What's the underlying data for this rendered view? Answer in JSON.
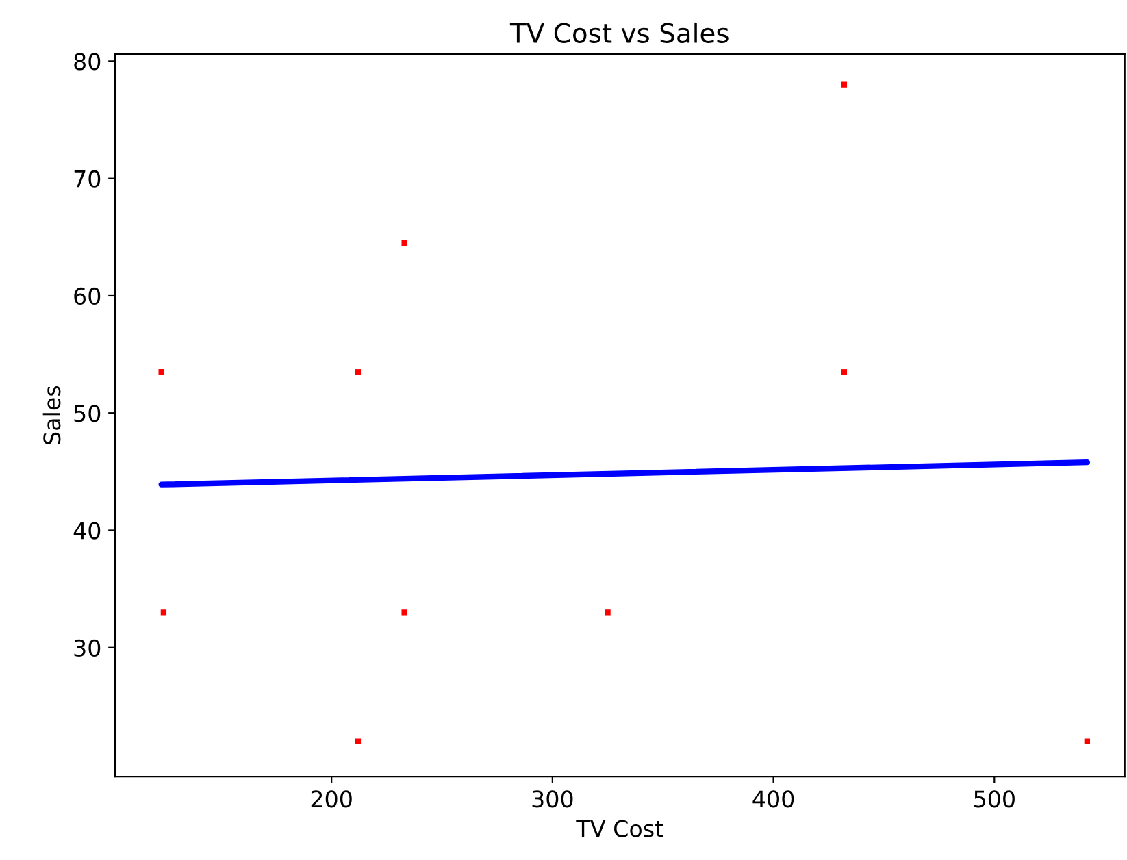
{
  "chart_data": {
    "type": "scatter",
    "title": "TV Cost vs Sales",
    "xlabel": "TV Cost",
    "ylabel": "Sales",
    "xlim": [
      102,
      559
    ],
    "xticks": [
      200,
      300,
      400,
      500
    ],
    "ylim": [
      19,
      80.6
    ],
    "yticks": [
      30,
      40,
      50,
      60,
      70,
      80
    ],
    "grid": false,
    "series": [
      {
        "color": "#ff0000",
        "marker": "square",
        "x": [
          123,
          124,
          212,
          212,
          233,
          233,
          325,
          432,
          432,
          542
        ],
        "values": [
          53.5,
          33,
          53.5,
          22,
          64.5,
          33,
          33,
          78,
          53.5,
          22
        ]
      },
      {
        "type": "line",
        "color": "#0000ff",
        "marker": "none",
        "x": [
          123,
          542
        ],
        "values": [
          43.9,
          45.8
        ]
      }
    ]
  }
}
